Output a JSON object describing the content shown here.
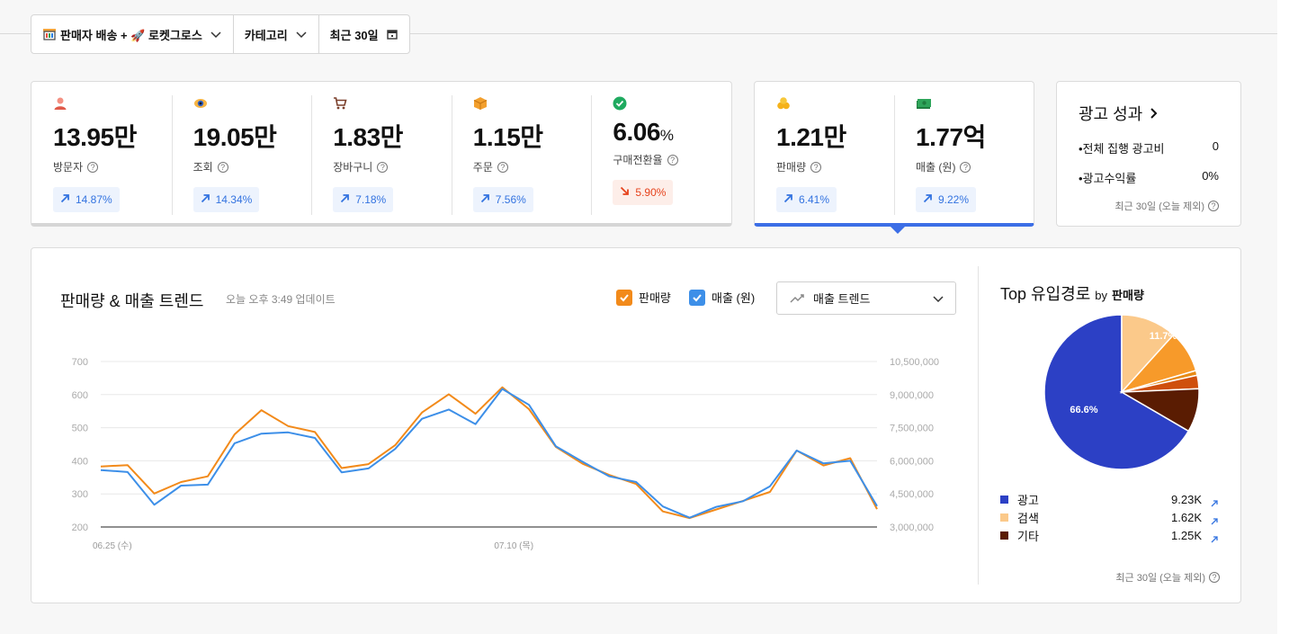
{
  "filters": {
    "shipping": "판매자 배송 + 🚀 로켓그로스",
    "category": "카테고리",
    "period": "최근 30일"
  },
  "metrics": [
    {
      "icon": "person-icon",
      "value": "13.95만",
      "label": "방문자",
      "change": "14.87%",
      "direction": "up"
    },
    {
      "icon": "eye-icon",
      "value": "19.05만",
      "label": "조회",
      "change": "14.34%",
      "direction": "up"
    },
    {
      "icon": "cart-icon",
      "value": "1.83만",
      "label": "장바구니",
      "change": "7.18%",
      "direction": "up"
    },
    {
      "icon": "box-icon",
      "value": "1.15만",
      "label": "주문",
      "change": "7.56%",
      "direction": "up"
    },
    {
      "icon": "check-circle-icon",
      "value": "6.06",
      "unit": "%",
      "label": "구매전환율",
      "change": "5.90%",
      "direction": "down"
    }
  ],
  "sales_metrics": [
    {
      "icon": "coins-icon",
      "value": "1.21만",
      "label": "판매량",
      "change": "6.41%",
      "direction": "up"
    },
    {
      "icon": "money-icon",
      "value": "1.77억",
      "label": "매출 (원)",
      "change": "9.22%",
      "direction": "up"
    }
  ],
  "ad": {
    "title": "광고 성과",
    "rows": [
      {
        "label": "•전체 집행 광고비",
        "value": "0"
      },
      {
        "label": "•광고수익률",
        "value": "0%"
      }
    ],
    "note": "최근 30일 (오늘 제외)"
  },
  "trend": {
    "title": "판매량 & 매출 트렌드",
    "updated": "오늘 오후 3:49 업데이트",
    "legend_sales": "판매량",
    "legend_revenue": "매출 (원)",
    "select_label": "매출 트렌드"
  },
  "colors": {
    "sales": "#f28a1a",
    "revenue": "#3d8fe8",
    "up": "#3373e0",
    "down": "#e6431d",
    "accent": "#3c6ee6"
  },
  "chart_data": {
    "type": "line",
    "x_tick_labels": [
      "06.25 (수)",
      "07.10 (목)"
    ],
    "y_left": {
      "ticks": [
        "200",
        "300",
        "400",
        "500",
        "600",
        "700"
      ],
      "range": [
        200,
        700
      ]
    },
    "y_right": {
      "ticks": [
        "3,000,000",
        "4,500,000",
        "6,000,000",
        "7,500,000",
        "9,000,000",
        "10,500,000"
      ],
      "range": [
        3000000,
        10500000
      ]
    },
    "grid": true,
    "series": [
      {
        "name": "판매량",
        "axis": "left",
        "values": [
          383,
          387,
          301,
          336,
          353,
          480,
          553,
          505,
          487,
          378,
          390,
          447,
          546,
          601,
          542,
          622,
          556,
          442,
          391,
          357,
          330,
          247,
          227,
          253,
          279,
          306,
          431,
          386,
          408,
          254
        ]
      },
      {
        "name": "매출 (원)",
        "axis": "left",
        "values": [
          372,
          366,
          267,
          325,
          328,
          453,
          482,
          486,
          469,
          365,
          377,
          436,
          527,
          555,
          511,
          617,
          569,
          444,
          397,
          353,
          336,
          262,
          228,
          261,
          278,
          323,
          431,
          392,
          400,
          263
        ]
      }
    ]
  },
  "top_inflow": {
    "title": "Top 유입경로",
    "by": "by",
    "metric": "판매량",
    "pie_labels": [
      "11.7%",
      "66.6%"
    ],
    "pie_slices": [
      {
        "value": 66.6,
        "color": "#2c40c5"
      },
      {
        "value": 11.7,
        "color": "#fbc98a"
      },
      {
        "value": 8.8,
        "color": "#f79a2a"
      },
      {
        "value": 1.0,
        "color": "#e88c17"
      },
      {
        "value": 2.8,
        "color": "#cf4f0c"
      },
      {
        "value": 9.1,
        "color": "#5a1c02"
      }
    ],
    "items": [
      {
        "name": "광고",
        "value": "9.23K",
        "color": "#2c40c5"
      },
      {
        "name": "검색",
        "value": "1.62K",
        "color": "#fbc98a"
      },
      {
        "name": "기타",
        "value": "1.25K",
        "color": "#5a1c02"
      }
    ],
    "note": "최근 30일 (오늘 제외)"
  }
}
